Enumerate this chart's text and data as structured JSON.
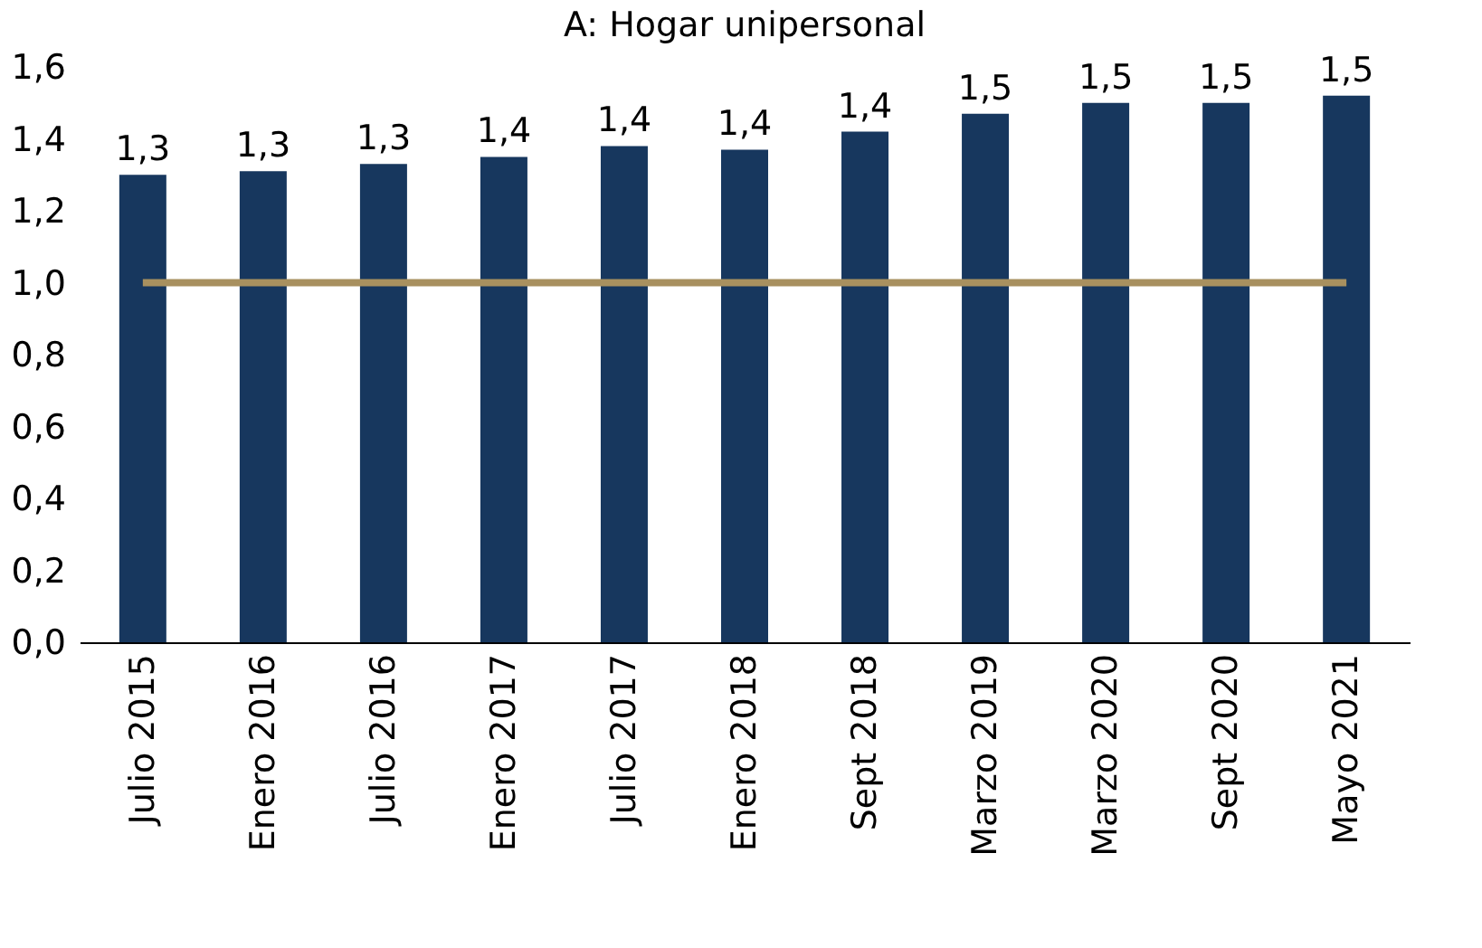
{
  "chart_data": {
    "type": "bar",
    "title": "A: Hogar unipersonal",
    "categories": [
      "Julio 2015",
      "Enero 2016",
      "Julio 2016",
      "Enero 2017",
      "Julio 2017",
      "Enero 2018",
      "Sept 2018",
      "Marzo 2019",
      "Marzo 2020",
      "Sept 2020",
      "Mayo 2021"
    ],
    "values": [
      1.3,
      1.31,
      1.33,
      1.35,
      1.38,
      1.37,
      1.42,
      1.47,
      1.5,
      1.5,
      1.52
    ],
    "value_labels": [
      "1,3",
      "1,3",
      "1,3",
      "1,4",
      "1,4",
      "1,4",
      "1,4",
      "1,5",
      "1,5",
      "1,5",
      "1,5"
    ],
    "color": "#17375e",
    "ylim": [
      0,
      1.6
    ],
    "yticks": [
      {
        "value": 0,
        "label": "0,0"
      },
      {
        "value": 0.2,
        "label": "0,2"
      },
      {
        "value": 0.4,
        "label": "0,4"
      },
      {
        "value": 0.6,
        "label": "0,6"
      },
      {
        "value": 0.8,
        "label": "0,8"
      },
      {
        "value": 1.0,
        "label": "1,0"
      },
      {
        "value": 1.2,
        "label": "1,2"
      },
      {
        "value": 1.4,
        "label": "1,4"
      },
      {
        "value": 1.6,
        "label": "1,6"
      }
    ],
    "ref_lines": [
      {
        "axis": "y",
        "value": 1.0,
        "color": "#a8905f"
      }
    ],
    "grid": false
  }
}
